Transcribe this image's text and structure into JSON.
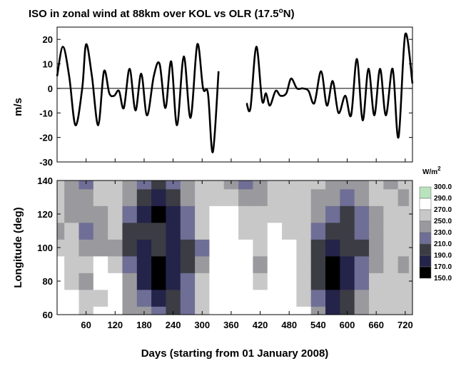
{
  "chart_data": [
    {
      "type": "line",
      "title": "ISO in zonal wind at 88km over KOL vs OLR (17.5",
      "title_sup": "o",
      "title_end": "N)",
      "ylabel": "m/s",
      "xlim": [
        0,
        735
      ],
      "ylim": [
        -30,
        25
      ],
      "yticks": [
        -30,
        -20,
        -10,
        0,
        10,
        20
      ],
      "zero_line": true,
      "series": [
        {
          "segments": [
            [
              [
                0,
                5
              ],
              [
                12,
                17
              ],
              [
                25,
                5
              ],
              [
                38,
                -15
              ],
              [
                52,
                0
              ],
              [
                60,
                18
              ],
              [
                72,
                5
              ],
              [
                85,
                -15
              ],
              [
                97,
                7
              ],
              [
                108,
                -2
              ],
              [
                118,
                -3
              ],
              [
                128,
                -1
              ],
              [
                138,
                -8
              ],
              [
                150,
                8
              ],
              [
                162,
                -9
              ],
              [
                174,
                6
              ],
              [
                186,
                -11
              ],
              [
                200,
                5
              ],
              [
                212,
                10
              ],
              [
                224,
                -8
              ],
              [
                236,
                11
              ],
              [
                248,
                -15
              ],
              [
                262,
                13
              ],
              [
                276,
                -12
              ],
              [
                290,
                18
              ],
              [
                302,
                0
              ],
              [
                312,
                -2
              ],
              [
                322,
                -26
              ],
              [
                334,
                7
              ]
            ],
            [
              [
                392,
                -6
              ],
              [
                400,
                -8
              ],
              [
                412,
                17
              ],
              [
                424,
                -5
              ],
              [
                432,
                -2
              ],
              [
                440,
                -7
              ],
              [
                452,
                -1
              ],
              [
                462,
                -3
              ],
              [
                474,
                -2
              ],
              [
                484,
                4
              ],
              [
                496,
                0
              ],
              [
                508,
                0
              ],
              [
                520,
                -1
              ],
              [
                532,
                -6
              ],
              [
                546,
                7
              ],
              [
                558,
                -7
              ],
              [
                570,
                3
              ],
              [
                582,
                -10
              ],
              [
                596,
                -3
              ],
              [
                608,
                -11
              ],
              [
                620,
                12
              ],
              [
                632,
                -13
              ],
              [
                644,
                8
              ],
              [
                656,
                -11
              ],
              [
                668,
                8
              ],
              [
                680,
                -11
              ],
              [
                694,
                8
              ],
              [
                706,
                -20
              ],
              [
                720,
                22
              ],
              [
                735,
                2
              ]
            ]
          ]
        }
      ]
    },
    {
      "type": "heatmap",
      "xlabel": "Days (starting from 01 January 2008)",
      "ylabel": "Longitude (deg)",
      "xlim": [
        0,
        735
      ],
      "ylim": [
        60,
        140
      ],
      "xticks": [
        60,
        120,
        180,
        240,
        300,
        360,
        420,
        480,
        540,
        600,
        660,
        720
      ],
      "yticks": [
        60,
        80,
        100,
        120,
        140
      ],
      "legend_unit": "W/m",
      "legend_unit_sup": "2",
      "legend_levels": [
        "300.0",
        "290.0",
        "270.0",
        "250.0",
        "230.0",
        "210.0",
        "190.0",
        "170.0",
        "150.0"
      ],
      "colors": [
        "#b8e3bd",
        "#ffffff",
        "#c8c8c8",
        "#9a9a9e",
        "#6e6e96",
        "#3c3c44",
        "#24244a",
        "#000000"
      ],
      "x": [
        0,
        30,
        60,
        90,
        120,
        150,
        180,
        210,
        240,
        270,
        300,
        330,
        360,
        390,
        420,
        450,
        480,
        510,
        540,
        570,
        600,
        630,
        660,
        690,
        720,
        735
      ],
      "y": [
        60,
        70,
        80,
        90,
        100,
        110,
        120,
        130,
        140
      ],
      "z": [
        [
          1,
          1,
          2,
          1,
          1,
          3,
          3,
          4,
          5,
          4,
          2,
          1,
          1,
          1,
          1,
          1,
          1,
          1,
          3,
          6,
          5,
          3,
          2,
          2,
          2,
          2
        ],
        [
          1,
          1,
          2,
          2,
          1,
          3,
          4,
          6,
          5,
          4,
          2,
          1,
          1,
          1,
          1,
          1,
          1,
          2,
          4,
          6,
          5,
          3,
          2,
          2,
          2,
          2
        ],
        [
          1,
          2,
          3,
          1,
          1,
          3,
          6,
          7,
          6,
          4,
          2,
          1,
          1,
          1,
          2,
          1,
          1,
          2,
          5,
          7,
          6,
          4,
          2,
          2,
          2,
          2
        ],
        [
          1,
          2,
          2,
          1,
          2,
          4,
          6,
          7,
          6,
          5,
          3,
          1,
          1,
          1,
          3,
          1,
          1,
          2,
          5,
          7,
          6,
          4,
          3,
          2,
          3,
          2
        ],
        [
          2,
          2,
          3,
          3,
          3,
          5,
          6,
          5,
          6,
          5,
          4,
          1,
          1,
          1,
          2,
          1,
          1,
          2,
          5,
          6,
          5,
          5,
          3,
          2,
          2,
          2
        ],
        [
          3,
          2,
          4,
          3,
          2,
          5,
          5,
          5,
          6,
          4,
          2,
          1,
          1,
          2,
          2,
          1,
          2,
          2,
          4,
          5,
          5,
          4,
          3,
          2,
          2,
          2
        ],
        [
          2,
          3,
          3,
          3,
          2,
          4,
          6,
          7,
          6,
          4,
          2,
          1,
          1,
          2,
          2,
          2,
          2,
          2,
          3,
          4,
          5,
          4,
          3,
          2,
          2,
          2
        ],
        [
          2,
          3,
          3,
          2,
          2,
          3,
          5,
          6,
          5,
          3,
          2,
          2,
          2,
          3,
          3,
          2,
          2,
          2,
          3,
          3,
          4,
          3,
          2,
          2,
          3,
          2
        ],
        [
          2,
          3,
          4,
          2,
          2,
          3,
          4,
          5,
          4,
          3,
          2,
          2,
          3,
          4,
          3,
          2,
          2,
          2,
          2,
          3,
          3,
          3,
          2,
          3,
          2,
          2
        ]
      ]
    }
  ]
}
